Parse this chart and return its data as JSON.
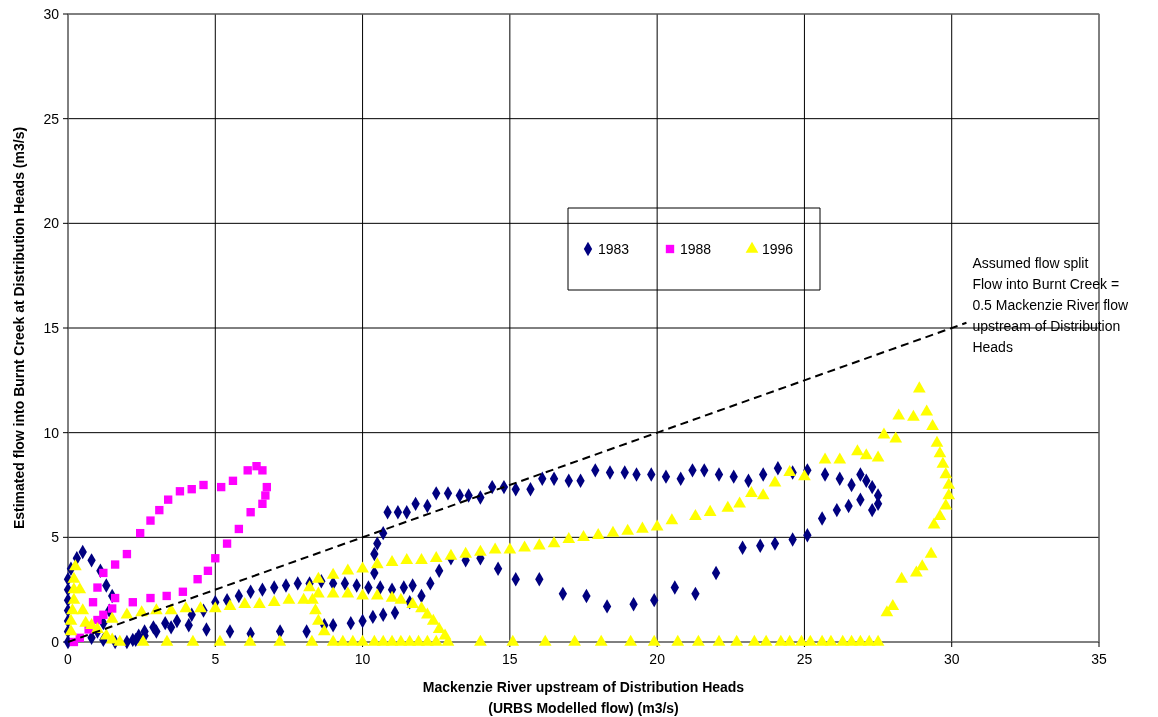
{
  "chart_data": {
    "type": "scatter",
    "xlabel": "Mackenzie River upstream of Distribution Heads\n(URBS Modelled flow) (m3/s)",
    "ylabel": "Estimated flow into Burnt Creek at Distribution  Heads (m3/s)",
    "xlim": [
      0,
      35
    ],
    "xticks": [
      0,
      5,
      10,
      15,
      20,
      25,
      30,
      35
    ],
    "ylim": [
      0,
      30
    ],
    "yticks": [
      0,
      5,
      10,
      15,
      20,
      25,
      30
    ],
    "grid": true,
    "legend": "top",
    "annotations": [
      {
        "text": "Assumed flow split\nFlow into Burnt Creek =\n0.5 Mackenzie River flow\nupstream of Distribution\nHeads",
        "x": 30.5,
        "y": 15.25
      }
    ],
    "series": [
      {
        "name": "1983",
        "color": "#000080",
        "marker": "diamond",
        "x": [
          0,
          0,
          0,
          0,
          0,
          0,
          0,
          0.1,
          0.3,
          0.5,
          0.8,
          1.1,
          1.3,
          1.5,
          1.4,
          1.2,
          1.0,
          0.8,
          1.2,
          1.6,
          2.0,
          2.2,
          2.4,
          2.6,
          2.9,
          3.3,
          3.7,
          4.2,
          4.6,
          5.0,
          5.4,
          5.8,
          6.2,
          6.6,
          7.0,
          7.4,
          7.8,
          8.2,
          8.6,
          9.0,
          9.4,
          9.8,
          10.2,
          10.6,
          11.0,
          11.4,
          11.7,
          10.4,
          10.4,
          10.5,
          10.7,
          10.85,
          11.2,
          11.5,
          11.8,
          12.2,
          12.5,
          12.9,
          13.3,
          13.6,
          14.0,
          14.4,
          14.8,
          15.2,
          15.7,
          16.1,
          16.5,
          17.0,
          17.4,
          17.9,
          18.4,
          18.9,
          19.3,
          19.8,
          20.3,
          20.8,
          21.2,
          21.6,
          22.1,
          22.6,
          23.1,
          23.6,
          24.1,
          24.6,
          25.1,
          25.7,
          26.2,
          26.6,
          26.9,
          27.1,
          27.3,
          27.5,
          27.5,
          27.3,
          26.9,
          26.5,
          26.1,
          25.6,
          25.1,
          24.6,
          24.0,
          23.5,
          22.9,
          22.0,
          21.3,
          20.6,
          19.9,
          19.2,
          18.3,
          17.6,
          16.8,
          16.0,
          15.2,
          14.6,
          14.0,
          13.5,
          13.0,
          12.6,
          12.3,
          12.0,
          11.6,
          11.1,
          10.7,
          10.35,
          10.0,
          9.6,
          9.0,
          8.7,
          8.1,
          7.2,
          6.2,
          5.5,
          4.7,
          4.1,
          3.5,
          3.0,
          2.6,
          2.3
        ],
        "values": [
          0,
          0.5,
          1.0,
          1.5,
          2.0,
          2.5,
          3.0,
          3.5,
          4.0,
          4.3,
          3.9,
          3.4,
          2.7,
          2.2,
          1.5,
          0.9,
          0.5,
          0.2,
          0.1,
          0,
          0,
          0.1,
          0.3,
          0.5,
          0.7,
          0.9,
          1.0,
          1.3,
          1.5,
          1.9,
          2.0,
          2.2,
          2.4,
          2.5,
          2.6,
          2.7,
          2.8,
          2.8,
          2.9,
          2.8,
          2.8,
          2.7,
          2.6,
          2.6,
          2.5,
          2.6,
          2.7,
          3.3,
          4.2,
          4.7,
          5.2,
          6.2,
          6.2,
          6.2,
          6.6,
          6.5,
          7.1,
          7.1,
          7.0,
          7.0,
          6.9,
          7.4,
          7.4,
          7.3,
          7.3,
          7.8,
          7.8,
          7.7,
          7.7,
          8.2,
          8.1,
          8.1,
          8.0,
          8.0,
          7.9,
          7.8,
          8.2,
          8.2,
          8.0,
          7.9,
          7.7,
          8.0,
          8.3,
          8.1,
          8.2,
          8.0,
          7.8,
          7.5,
          8.0,
          7.7,
          7.4,
          7.0,
          6.6,
          6.3,
          6.8,
          6.5,
          6.3,
          5.9,
          5.1,
          4.9,
          4.7,
          4.6,
          4.5,
          3.3,
          2.3,
          2.6,
          2.0,
          1.8,
          1.7,
          2.2,
          2.3,
          3.0,
          3.0,
          3.5,
          4.0,
          3.9,
          4.0,
          3.4,
          2.8,
          2.2,
          1.9,
          1.4,
          1.3,
          1.2,
          1.0,
          0.9,
          0.8,
          0.8,
          0.5,
          0.5,
          0.4,
          0.5,
          0.6,
          0.8,
          0.7,
          0.5,
          0.3,
          0.1
        ]
      },
      {
        "name": "1988",
        "color": "#ff00ff",
        "marker": "square",
        "x": [
          0.2,
          0.85,
          1.0,
          1.2,
          1.6,
          2.0,
          2.45,
          2.8,
          3.1,
          3.4,
          3.8,
          4.2,
          4.6,
          5.2,
          5.6,
          6.1,
          6.4,
          6.6,
          6.75,
          6.7,
          6.6,
          6.2,
          5.8,
          5.4,
          5.0,
          4.75,
          4.4,
          3.9,
          3.35,
          2.8,
          2.2,
          1.6,
          1.5,
          1.2,
          1.0,
          0.7,
          0.4
        ],
        "values": [
          0,
          1.9,
          2.6,
          3.3,
          3.7,
          4.2,
          5.2,
          5.8,
          6.3,
          6.8,
          7.2,
          7.3,
          7.5,
          7.4,
          7.7,
          8.2,
          8.4,
          8.2,
          7.4,
          7.0,
          6.6,
          6.2,
          5.4,
          4.7,
          4.0,
          3.4,
          3.0,
          2.4,
          2.2,
          2.1,
          1.9,
          2.1,
          1.6,
          1.3,
          1.05,
          0.6,
          0.2
        ]
      },
      {
        "name": "1996",
        "color": "#ffff00",
        "marker": "triangle",
        "x": [
          0.1,
          0.1,
          0.15,
          0.2,
          0.2,
          0.2,
          0.25,
          0.4,
          0.5,
          0.6,
          0.8,
          1.0,
          1.3,
          1.5,
          1.76,
          2.55,
          3.36,
          4.24,
          5.16,
          6.18,
          7.19,
          8.28,
          9.0,
          9.33,
          9.67,
          10.0,
          10.4,
          10.7,
          11.0,
          11.3,
          11.6,
          11.9,
          12.2,
          12.5,
          12.9,
          14.0,
          15.1,
          16.2,
          17.2,
          18.1,
          19.1,
          19.9,
          20.7,
          21.4,
          22.1,
          22.7,
          23.3,
          23.7,
          24.2,
          24.5,
          24.9,
          25.2,
          25.6,
          25.9,
          26.3,
          26.6,
          26.9,
          27.2,
          27.5,
          12.8,
          12.6,
          12.4,
          12.2,
          12.0,
          11.7,
          11.3,
          11.0,
          10.5,
          10.0,
          9.5,
          9.0,
          8.5,
          8.3,
          8.4,
          8.5,
          8.7,
          1.5,
          2.0,
          2.5,
          3.0,
          3.5,
          4.0,
          4.5,
          5.0,
          5.5,
          6.0,
          6.5,
          7.0,
          7.5,
          8.0,
          8.2,
          8.5,
          9.0,
          9.5,
          10.0,
          10.5,
          11.0,
          11.5,
          12.0,
          12.5,
          13.0,
          13.5,
          14.0,
          14.5,
          15.0,
          15.5,
          16.0,
          16.5,
          17.0,
          17.5,
          18.0,
          18.5,
          19.0,
          19.5,
          20.0,
          20.5,
          21.3,
          21.8,
          22.4,
          22.8,
          23.2,
          23.6,
          24.0,
          24.5,
          25.0,
          25.7,
          26.2,
          26.8,
          27.1,
          27.5,
          27.7,
          28.1,
          28.2,
          28.7,
          28.9,
          29.15,
          29.35,
          29.5,
          29.6,
          29.7,
          29.8,
          29.9,
          29.9,
          29.8,
          29.6,
          29.4,
          29.3,
          29.0,
          28.8,
          28.3,
          28.0,
          27.8
        ],
        "values": [
          0.5,
          1.0,
          1.5,
          2.0,
          2.5,
          3.0,
          3.6,
          2.5,
          1.5,
          0.9,
          0.8,
          0.6,
          0.3,
          0.1,
          0,
          0,
          0,
          0,
          0,
          0,
          0,
          0,
          0,
          0,
          0,
          0,
          0,
          0,
          0,
          0,
          0,
          0,
          0,
          0,
          0,
          0,
          0,
          0,
          0,
          0,
          0,
          0,
          0,
          0,
          0,
          0,
          0,
          0,
          0,
          0,
          0,
          0,
          0,
          0,
          0,
          0,
          0,
          0,
          0,
          0.3,
          0.6,
          1.0,
          1.3,
          1.6,
          1.8,
          2.0,
          2.1,
          2.2,
          2.2,
          2.3,
          2.3,
          2.3,
          2.0,
          1.5,
          1.0,
          0.5,
          1.1,
          1.3,
          1.4,
          1.5,
          1.5,
          1.6,
          1.6,
          1.6,
          1.7,
          1.8,
          1.8,
          1.9,
          2.0,
          2.0,
          2.6,
          3.0,
          3.2,
          3.4,
          3.5,
          3.7,
          3.8,
          3.9,
          3.9,
          4.0,
          4.1,
          4.2,
          4.3,
          4.4,
          4.4,
          4.5,
          4.6,
          4.7,
          4.9,
          5.0,
          5.1,
          5.2,
          5.3,
          5.4,
          5.5,
          5.8,
          6.0,
          6.2,
          6.4,
          6.6,
          7.1,
          7.0,
          7.6,
          8.1,
          7.9,
          8.7,
          8.7,
          9.1,
          8.9,
          8.8,
          9.9,
          9.7,
          10.8,
          10.75,
          12.1,
          11.0,
          10.3,
          9.5,
          9.0,
          8.5,
          8.0,
          7.5,
          7.0,
          6.5,
          6.0,
          5.6,
          4.2,
          3.6,
          3.3,
          3.0,
          1.7,
          1.4
        ]
      },
      {
        "type": "line",
        "color": "#000000",
        "line_style": "dashed",
        "marker": "none",
        "x": [
          0,
          30.5
        ],
        "values": [
          0,
          15.25
        ]
      }
    ]
  }
}
